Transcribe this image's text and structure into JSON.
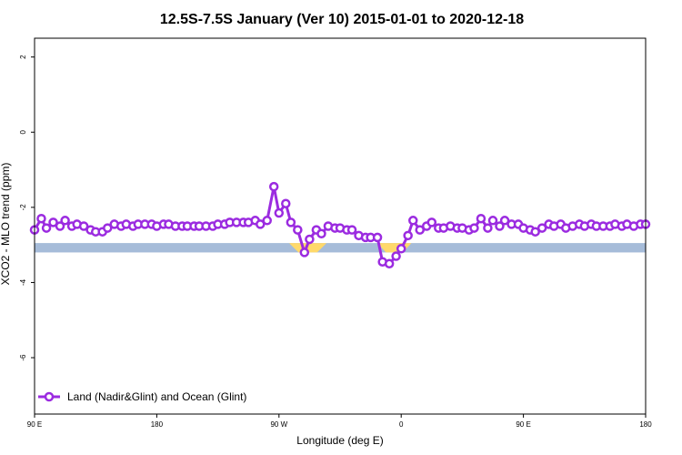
{
  "chart_data": {
    "type": "line",
    "title": "12.5S-7.5S January (Ver 10)   2015-01-01 to 2020-12-18",
    "xlabel": "Longitude (deg E)",
    "ylabel": "XCO2 - MLO trend (ppm)",
    "xlim": [
      90,
      450
    ],
    "ylim": [
      -7.5,
      2.5
    ],
    "x_ticks": [
      {
        "value": 90,
        "label": "90 E"
      },
      {
        "value": 162,
        "label": "180"
      },
      {
        "value": 234,
        "label": "90 W"
      },
      {
        "value": 306,
        "label": "0"
      },
      {
        "value": 378,
        "label": "90 E"
      },
      {
        "value": 450,
        "label": "180"
      }
    ],
    "y_ticks": [
      {
        "value": 2,
        "label": "2"
      },
      {
        "value": 0,
        "label": "0"
      },
      {
        "value": -2,
        "label": "-2"
      },
      {
        "value": -4,
        "label": "-4"
      },
      {
        "value": -6,
        "label": "-6"
      }
    ],
    "legend": {
      "position": "bottom-left",
      "entry": "Land (Nadir&Glint) and Ocean (Glint)"
    },
    "series": [
      {
        "name": "Land (Nadir&Glint) and Ocean (Glint)",
        "color": "#9b2be0",
        "x": [
          90,
          94,
          97,
          101,
          105,
          108,
          112,
          115,
          119,
          123,
          126,
          130,
          133,
          137,
          141,
          144,
          148,
          151,
          155,
          159,
          162,
          166,
          169,
          173,
          177,
          180,
          184,
          187,
          191,
          195,
          198,
          202,
          205,
          209,
          213,
          216,
          220,
          223,
          227,
          231,
          234,
          238,
          241,
          245,
          249,
          252,
          256,
          259,
          263,
          267,
          270,
          274,
          277,
          281,
          285,
          288,
          292,
          295,
          299,
          303,
          306,
          310,
          313,
          317,
          321,
          324,
          328,
          331,
          335,
          339,
          342,
          346,
          349,
          353,
          357,
          360,
          364,
          367,
          371,
          375,
          378,
          382,
          385,
          389,
          393,
          396,
          400,
          403,
          407,
          411,
          414,
          418,
          421,
          425,
          429,
          432,
          436,
          439,
          443,
          447,
          450
        ],
        "y": [
          -2.6,
          -2.3,
          -2.55,
          -2.4,
          -2.5,
          -2.35,
          -2.5,
          -2.45,
          -2.5,
          -2.6,
          -2.65,
          -2.65,
          -2.55,
          -2.45,
          -2.5,
          -2.45,
          -2.5,
          -2.45,
          -2.45,
          -2.45,
          -2.5,
          -2.45,
          -2.45,
          -2.5,
          -2.5,
          -2.5,
          -2.5,
          -2.5,
          -2.5,
          -2.5,
          -2.45,
          -2.45,
          -2.4,
          -2.4,
          -2.4,
          -2.4,
          -2.35,
          -2.45,
          -2.35,
          -1.45,
          -2.15,
          -1.9,
          -2.4,
          -2.6,
          -3.2,
          -2.85,
          -2.6,
          -2.7,
          -2.5,
          -2.55,
          -2.55,
          -2.6,
          -2.6,
          -2.75,
          -2.8,
          -2.8,
          -2.8,
          -3.45,
          -3.5,
          -3.3,
          -3.1,
          -2.75,
          -2.35,
          -2.6,
          -2.5,
          -2.4,
          -2.55,
          -2.55,
          -2.5,
          -2.55,
          -2.55,
          -2.6,
          -2.55,
          -2.3,
          -2.55,
          -2.35,
          -2.5,
          -2.35,
          -2.45,
          -2.45,
          -2.55,
          -2.6,
          -2.65,
          -2.55,
          -2.45,
          -2.5,
          -2.45,
          -2.55,
          -2.5,
          -2.45,
          -2.5,
          -2.45,
          -2.5,
          -2.5,
          -2.5,
          -2.45,
          -2.5,
          -2.45,
          -2.5,
          -2.45,
          -2.45
        ]
      }
    ],
    "land_ocean_band": {
      "y_range": [
        -3.2,
        -2.95
      ],
      "ocean_color": "#a6bcd9",
      "land_color": "#ffd96b",
      "land_segments": [
        [
          240,
          262
        ],
        [
          292,
          312
        ]
      ]
    },
    "grid": false
  }
}
